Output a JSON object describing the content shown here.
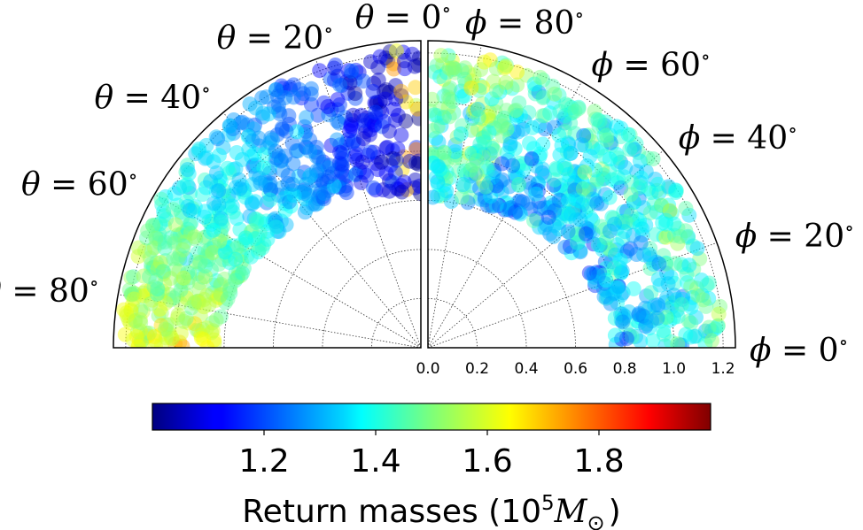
{
  "chart_data": {
    "type": "scatter",
    "subtype": "polar-quarter-panels",
    "panels": [
      {
        "name": "theta",
        "angle_symbol": "θ",
        "angle_ticks": [
          0,
          20,
          40,
          60,
          80
        ],
        "angle_range": [
          0,
          90
        ],
        "radial_range": [
          0,
          1.25
        ],
        "radial_ticks": [
          0.2,
          0.4,
          0.6,
          0.8,
          1.0,
          1.2
        ],
        "points_radial_range": [
          0.62,
          1.22
        ]
      },
      {
        "name": "phi",
        "angle_symbol": "ϕ",
        "angle_ticks": [
          0,
          20,
          40,
          60,
          80
        ],
        "angle_range": [
          0,
          90
        ],
        "radial_range": [
          0,
          1.25
        ],
        "radial_ticks": [
          0.0,
          0.2,
          0.4,
          0.6,
          0.8,
          1.0,
          1.2
        ],
        "points_radial_range": [
          0.58,
          1.2
        ]
      }
    ],
    "radial_tick_labels": [
      "0.0",
      "0.2",
      "0.4",
      "0.6",
      "0.8",
      "1.0",
      "1.2"
    ],
    "grid": true,
    "colorbar": {
      "colormap": "jet",
      "range": [
        1.0,
        2.0
      ],
      "ticks": [
        "1.2",
        "1.4",
        "1.6",
        "1.8"
      ],
      "tick_values": [
        1.2,
        1.4,
        1.6,
        1.8
      ],
      "label_main": "Return masses (10",
      "label_sup": "5",
      "label_sym": "M",
      "label_sub": "⊙",
      "label_close": ")"
    },
    "point_alpha": 0.45,
    "points_per_panel": 700
  }
}
